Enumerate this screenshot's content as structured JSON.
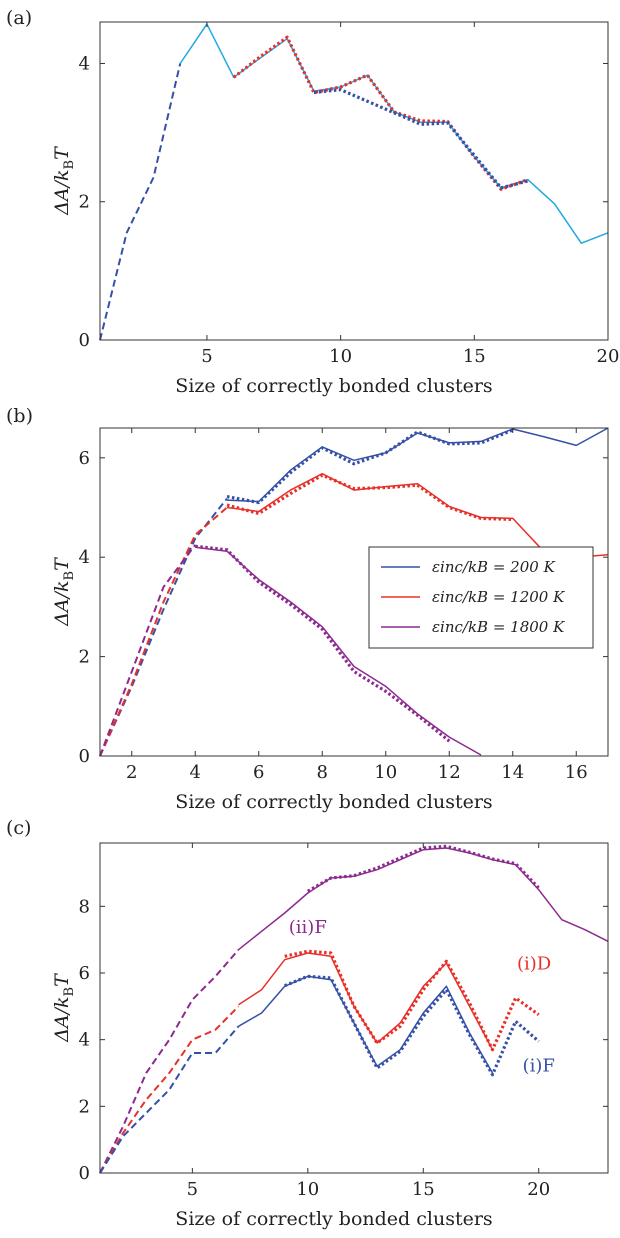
{
  "chart_data": [
    {
      "panel": "(a)",
      "type": "line",
      "xlabel": "Size of correctly bonded clusters",
      "ylabel": "ΔA/k_BT",
      "xlim": [
        1,
        20
      ],
      "ylim": [
        0,
        4.6
      ],
      "xticks": [
        5,
        10,
        15,
        20
      ],
      "yticks": [
        0,
        2,
        4
      ],
      "series": [
        {
          "color": "#1fa9e1",
          "style": "solid",
          "x": [
            4,
            5,
            6,
            7,
            8,
            9,
            10,
            11,
            12,
            13,
            14,
            15,
            16,
            17,
            18,
            19,
            20
          ],
          "y": [
            4.0,
            4.57,
            3.8,
            4.08,
            4.36,
            3.6,
            3.66,
            3.83,
            3.3,
            3.15,
            3.15,
            2.65,
            2.2,
            2.32,
            1.97,
            1.4,
            1.55
          ]
        },
        {
          "color": "#3550a6",
          "style": "dashed",
          "x": [
            1,
            2,
            3,
            4
          ],
          "y": [
            0,
            1.55,
            2.35,
            4.0
          ]
        },
        {
          "color": "#e8302a",
          "style": "dotted",
          "x": [
            6,
            7,
            8,
            9,
            10,
            11,
            12,
            13,
            14,
            15,
            16,
            17
          ],
          "y": [
            3.8,
            4.1,
            4.38,
            3.58,
            3.66,
            3.83,
            3.3,
            3.17,
            3.16,
            2.65,
            2.18,
            2.32
          ]
        },
        {
          "color": "#3550a6",
          "style": "dotted",
          "x": [
            9,
            10,
            13,
            14,
            16,
            17
          ],
          "y": [
            3.58,
            3.62,
            3.12,
            3.14,
            2.2,
            2.3
          ]
        }
      ]
    },
    {
      "panel": "(b)",
      "type": "line",
      "xlabel": "Size of correctly bonded clusters",
      "ylabel": "ΔA/k_BT",
      "xlim": [
        1,
        17
      ],
      "ylim": [
        0,
        6.6
      ],
      "xticks": [
        2,
        4,
        6,
        8,
        10,
        12,
        14,
        16
      ],
      "yticks": [
        0,
        2,
        4,
        6
      ],
      "legend": {
        "position": "right",
        "entries": [
          {
            "label": "εinc/kB = 200 K",
            "color": "#3550a6"
          },
          {
            "label": "εinc/kB = 1200 K",
            "color": "#e8302a"
          },
          {
            "label": "εinc/kB = 1800 K",
            "color": "#8c2a8f"
          }
        ]
      },
      "series": [
        {
          "color": "#3550a6",
          "style": "solid",
          "x": [
            5,
            6,
            7,
            8,
            9,
            10,
            11,
            12,
            13,
            14,
            15,
            16,
            17
          ],
          "y": [
            5.15,
            5.12,
            5.75,
            6.22,
            5.95,
            6.1,
            6.5,
            6.3,
            6.33,
            6.58,
            6.42,
            6.25,
            6.6
          ]
        },
        {
          "color": "#3550a6",
          "style": "dotted",
          "x": [
            5,
            6,
            7,
            8,
            9,
            10,
            11,
            12,
            13,
            14
          ],
          "y": [
            5.22,
            5.1,
            5.7,
            6.2,
            5.88,
            6.1,
            6.52,
            6.28,
            6.3,
            6.56
          ]
        },
        {
          "color": "#3550a6",
          "style": "dashed",
          "x": [
            1,
            2,
            3,
            4,
            5
          ],
          "y": [
            0,
            1.4,
            2.95,
            4.38,
            5.18
          ]
        },
        {
          "color": "#e8302a",
          "style": "solid",
          "x": [
            5,
            6,
            7,
            8,
            9,
            10,
            11,
            12,
            13,
            14,
            15,
            16,
            17
          ],
          "y": [
            5.0,
            4.92,
            5.35,
            5.68,
            5.35,
            5.42,
            5.48,
            5.02,
            4.8,
            4.78,
            4.1,
            4.0,
            4.05
          ]
        },
        {
          "color": "#e8302a",
          "style": "dotted",
          "x": [
            5,
            6,
            7,
            8,
            9,
            10,
            11,
            12,
            13,
            14
          ],
          "y": [
            5.05,
            4.88,
            5.28,
            5.65,
            5.38,
            5.4,
            5.45,
            5.0,
            4.78,
            4.76
          ]
        },
        {
          "color": "#e8302a",
          "style": "dashed",
          "x": [
            1,
            2,
            3,
            4,
            5
          ],
          "y": [
            0,
            1.45,
            3.1,
            4.45,
            5.0
          ]
        },
        {
          "color": "#8c2a8f",
          "style": "solid",
          "x": [
            4,
            5,
            6,
            7,
            8,
            9,
            10,
            11,
            12,
            13
          ],
          "y": [
            4.2,
            4.12,
            3.55,
            3.1,
            2.6,
            1.8,
            1.4,
            0.85,
            0.38,
            0.02
          ]
        },
        {
          "color": "#8c2a8f",
          "style": "dotted",
          "x": [
            4,
            5,
            6,
            7,
            8,
            9,
            10,
            11,
            12
          ],
          "y": [
            4.22,
            4.15,
            3.5,
            3.05,
            2.55,
            1.7,
            1.3,
            0.82,
            0.3
          ]
        },
        {
          "color": "#8c2a8f",
          "style": "dashed",
          "x": [
            1,
            2,
            3,
            4
          ],
          "y": [
            0,
            1.7,
            3.4,
            4.25
          ]
        }
      ]
    },
    {
      "panel": "(c)",
      "type": "line",
      "xlabel": "Size of correctly bonded clusters",
      "ylabel": "ΔA/k_BT",
      "xlim": [
        1,
        23
      ],
      "ylim": [
        0,
        9.9
      ],
      "xticks": [
        5,
        10,
        15,
        20
      ],
      "yticks": [
        0,
        2,
        4,
        6,
        8
      ],
      "annotations": [
        {
          "text": "(ii)F",
          "x": 10,
          "y": 7.2,
          "color": "#8c2a8f"
        },
        {
          "text": "(i)D",
          "x": 19.8,
          "y": 6.1,
          "color": "#e8302a"
        },
        {
          "text": "(i)F",
          "x": 20,
          "y": 3.05,
          "color": "#3550a6"
        }
      ],
      "series": [
        {
          "color": "#8c2a8f",
          "style": "solid",
          "x": [
            7,
            8,
            9,
            10,
            11,
            12,
            13,
            14,
            15,
            16,
            17,
            18,
            19,
            20,
            21,
            22,
            23
          ],
          "y": [
            6.7,
            7.25,
            7.8,
            8.4,
            8.85,
            8.9,
            9.1,
            9.4,
            9.7,
            9.75,
            9.6,
            9.4,
            9.25,
            8.5,
            7.6,
            7.3,
            6.95
          ]
        },
        {
          "color": "#8c2a8f",
          "style": "dotted",
          "x": [
            10,
            11,
            12,
            13,
            14,
            15,
            16,
            17,
            18,
            19,
            20
          ],
          "y": [
            8.45,
            8.85,
            8.92,
            9.15,
            9.45,
            9.75,
            9.8,
            9.62,
            9.42,
            9.28,
            8.55
          ]
        },
        {
          "color": "#8c2a8f",
          "style": "dashed",
          "x": [
            1,
            2,
            3,
            4,
            5,
            6,
            7
          ],
          "y": [
            0,
            1.4,
            3.0,
            4.0,
            5.2,
            5.9,
            6.7
          ]
        },
        {
          "color": "#e8302a",
          "style": "solid",
          "x": [
            7,
            8,
            9,
            10,
            11,
            12,
            13,
            14,
            15,
            16,
            17,
            18
          ],
          "y": [
            5.05,
            5.5,
            6.4,
            6.6,
            6.5,
            5.0,
            3.9,
            4.5,
            5.6,
            6.3,
            5.0,
            3.7
          ]
        },
        {
          "color": "#e8302a",
          "style": "dotted",
          "x": [
            9,
            10,
            11,
            12,
            13,
            14,
            15,
            16,
            17,
            18,
            19,
            20
          ],
          "y": [
            6.5,
            6.65,
            6.6,
            5.0,
            3.9,
            4.4,
            5.5,
            6.35,
            5.1,
            3.7,
            5.25,
            4.75
          ]
        },
        {
          "color": "#e8302a",
          "style": "dashed",
          "x": [
            1,
            2,
            3,
            4,
            5,
            6,
            7
          ],
          "y": [
            0,
            1.2,
            2.2,
            3.0,
            4.0,
            4.3,
            5.0
          ]
        },
        {
          "color": "#3550a6",
          "style": "solid",
          "x": [
            7,
            8,
            9,
            10,
            11,
            12,
            13,
            14,
            15,
            16,
            17,
            18
          ],
          "y": [
            4.4,
            4.8,
            5.6,
            5.9,
            5.8,
            4.5,
            3.2,
            3.7,
            4.8,
            5.6,
            4.2,
            3.0
          ]
        },
        {
          "color": "#3550a6",
          "style": "dotted",
          "x": [
            9,
            10,
            11,
            12,
            13,
            14,
            15,
            16,
            17,
            18,
            19,
            20
          ],
          "y": [
            5.62,
            5.9,
            5.85,
            4.5,
            3.15,
            3.65,
            4.7,
            5.5,
            4.15,
            2.95,
            4.55,
            3.95
          ]
        },
        {
          "color": "#3550a6",
          "style": "dashed",
          "x": [
            1,
            2,
            3,
            4,
            5,
            6,
            7
          ],
          "y": [
            0,
            1.1,
            1.8,
            2.5,
            3.6,
            3.6,
            4.4
          ]
        }
      ]
    }
  ]
}
